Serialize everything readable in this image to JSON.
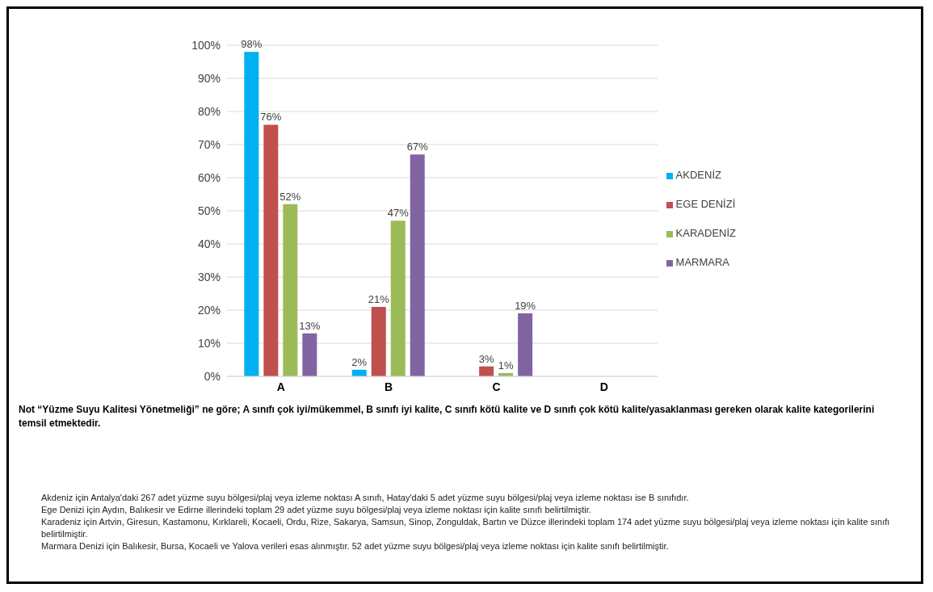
{
  "chart_data": {
    "type": "bar",
    "categories": [
      "A",
      "B",
      "C",
      "D"
    ],
    "series": [
      {
        "name": "AKDENİZ",
        "color": "#00b0f0",
        "values": [
          98,
          2,
          null,
          null
        ],
        "value_labels": [
          "98%",
          "2%",
          null,
          null
        ]
      },
      {
        "name": "EGE DENİZİ",
        "color": "#c0504d",
        "values": [
          76,
          21,
          3,
          null
        ],
        "value_labels": [
          "76%",
          "21%",
          "3%",
          null
        ]
      },
      {
        "name": "KARADENİZ",
        "color": "#9bbb59",
        "values": [
          52,
          47,
          1,
          null
        ],
        "value_labels": [
          "52%",
          "47%",
          "1%",
          null
        ]
      },
      {
        "name": "MARMARA",
        "color": "#8064a2",
        "values": [
          13,
          67,
          19,
          null
        ],
        "value_labels": [
          "13%",
          "67%",
          "19%",
          null
        ]
      }
    ],
    "ylim": [
      0,
      100
    ],
    "yticks": [
      {
        "value": 0,
        "label": "0%"
      },
      {
        "value": 10,
        "label": "10%"
      },
      {
        "value": 20,
        "label": "20%"
      },
      {
        "value": 30,
        "label": "30%"
      },
      {
        "value": 40,
        "label": "40%"
      },
      {
        "value": 50,
        "label": "50%"
      },
      {
        "value": 60,
        "label": "60%"
      },
      {
        "value": 70,
        "label": "70%"
      },
      {
        "value": 80,
        "label": "80%"
      },
      {
        "value": 90,
        "label": "90%"
      },
      {
        "value": 100,
        "label": "100%"
      }
    ],
    "grid": "y",
    "legend": "right",
    "annotations": [
      "Not “Yüzme Suyu Kalitesi Yönetmeliği” ne göre; A sınıfı çok iyi/mükemmel, B sınıfı iyi kalite, C sınıfı kötü kalite ve D sınıfı çok kötü kalite/yasaklanması gereken olarak kalite kategorilerini temsil etmektedir.",
      "Akdeniz için Antalya'daki 267 adet yüzme suyu bölgesi/plaj veya izleme noktası A sınıfı, Hatay'daki 5 adet yüzme suyu bölgesi/plaj veya izleme noktası ise B sınıfıdır.",
      "Ege Denizi için Aydın, Balıkesir ve Edirne illerindeki toplam 29 adet yüzme suyu bölgesi/plaj veya izleme noktası için kalite sınıfı belirtilmiştir.",
      "Karadeniz için Artvin, Giresun, Kastamonu, Kırklareli, Kocaeli, Ordu, Rize, Sakarya, Samsun, Sinop, Zonguldak, Bartın ve Düzce illerindeki toplam 174 adet yüzme suyu bölgesi/plaj veya izleme noktası için kalite sınıfı belirtilmiştir.",
      "Marmara Denizi için Balıkesir, Bursa, Kocaeli ve Yalova verileri esas alınmıştır. 52 adet yüzme suyu bölgesi/plaj veya izleme noktası için kalite sınıfı belirtilmiştir."
    ]
  }
}
